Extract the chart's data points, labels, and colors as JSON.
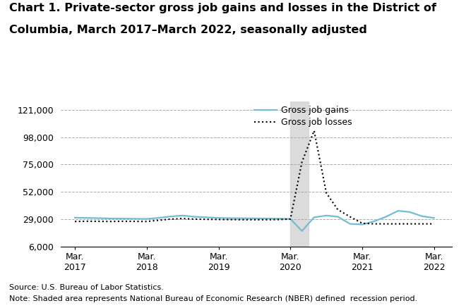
{
  "title_line1": "Chart 1. Private-sector gross job gains and losses in the District of",
  "title_line2": "Columbia, March 2017–March 2022, seasonally adjusted",
  "title_fontsize": 11.5,
  "ylim": [
    6000,
    128000
  ],
  "yticks": [
    6000,
    29000,
    52000,
    75000,
    98000,
    121000
  ],
  "ytick_labels": [
    "6,000",
    "29,000",
    "52,000",
    "75,000",
    "98,000",
    "121,000"
  ],
  "source_text": "Source: U.S. Bureau of Labor Statistics.",
  "note_text": "Note: Shaded area represents National Bureau of Economic Research (NBER) defined  recession period.",
  "recession_start": 2020.17,
  "recession_end": 2020.42,
  "gains_color": "#72bcd4",
  "losses_color": "#000000",
  "gains_label": "Gross job gains",
  "losses_label": "Gross job losses",
  "xlim": [
    2016.97,
    2022.42
  ],
  "xticks": [
    2017.17,
    2018.17,
    2019.17,
    2020.17,
    2021.17,
    2022.17
  ],
  "xtick_top": [
    "Mar.",
    "Mar.",
    "Mar.",
    "Mar.",
    "Mar.",
    "Mar."
  ],
  "xtick_bot": [
    "2017",
    "2018",
    "2019",
    "2020",
    "2021",
    "2022"
  ],
  "x_values": [
    2017.17,
    2017.33,
    2017.5,
    2017.67,
    2017.83,
    2018.0,
    2018.17,
    2018.33,
    2018.5,
    2018.67,
    2018.83,
    2019.0,
    2019.17,
    2019.33,
    2019.5,
    2019.67,
    2019.83,
    2020.0,
    2020.17,
    2020.33,
    2020.5,
    2020.67,
    2020.83,
    2021.0,
    2021.17,
    2021.33,
    2021.5,
    2021.67,
    2021.83,
    2022.0,
    2022.17
  ],
  "gains_values": [
    30200,
    30000,
    29800,
    29500,
    29400,
    29300,
    29200,
    30000,
    31200,
    32000,
    31000,
    30500,
    30000,
    29800,
    29700,
    29600,
    29500,
    29400,
    29200,
    19000,
    30500,
    32000,
    31000,
    25000,
    24500,
    27000,
    31000,
    36000,
    35000,
    31500,
    30000
  ],
  "losses_values": [
    27000,
    27200,
    27100,
    27000,
    27200,
    27100,
    27000,
    28000,
    29000,
    29500,
    29000,
    28800,
    28700,
    28600,
    28500,
    28500,
    28500,
    28600,
    29000,
    77000,
    103500,
    51000,
    37000,
    31000,
    25500,
    25000,
    25000,
    25000,
    25000,
    25000,
    25000
  ]
}
